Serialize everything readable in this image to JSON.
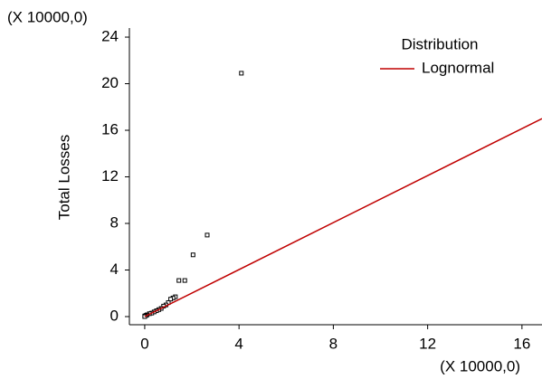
{
  "chart_data": {
    "type": "scatter",
    "y_label": "Total Losses",
    "y_multiplier": "(X 10000,0)",
    "x_multiplier": "(X 10000,0)",
    "legend_title": "Distribution",
    "xlim": [
      -0.65,
      16.85
    ],
    "ylim": [
      -0.7,
      24.78
    ],
    "xticks": [
      0,
      4,
      8,
      12,
      16
    ],
    "yticks": [
      0,
      4,
      8,
      12,
      16,
      20,
      24
    ],
    "grid": false,
    "legend_position": "upper right",
    "series": [
      {
        "color": "#000000",
        "mode": "markers",
        "x": [
          4.1,
          2.65,
          2.05,
          1.7,
          1.45,
          1.3,
          1.2,
          1.1,
          1.0,
          0.9,
          0.8,
          0.7,
          0.6,
          0.5,
          0.4,
          0.3,
          0.2,
          0.1,
          0.05,
          0.0,
          0.0
        ],
        "values": [
          20.9,
          7.0,
          5.3,
          3.1,
          3.1,
          1.7,
          1.6,
          1.5,
          1.2,
          1.0,
          0.9,
          0.7,
          0.6,
          0.5,
          0.4,
          0.3,
          0.25,
          0.15,
          0.1,
          0.05,
          0.0
        ]
      },
      {
        "name": "Lognormal",
        "color": "#c00000",
        "mode": "line",
        "x": [
          0,
          16.85
        ],
        "values": [
          0,
          17.0
        ]
      }
    ]
  }
}
